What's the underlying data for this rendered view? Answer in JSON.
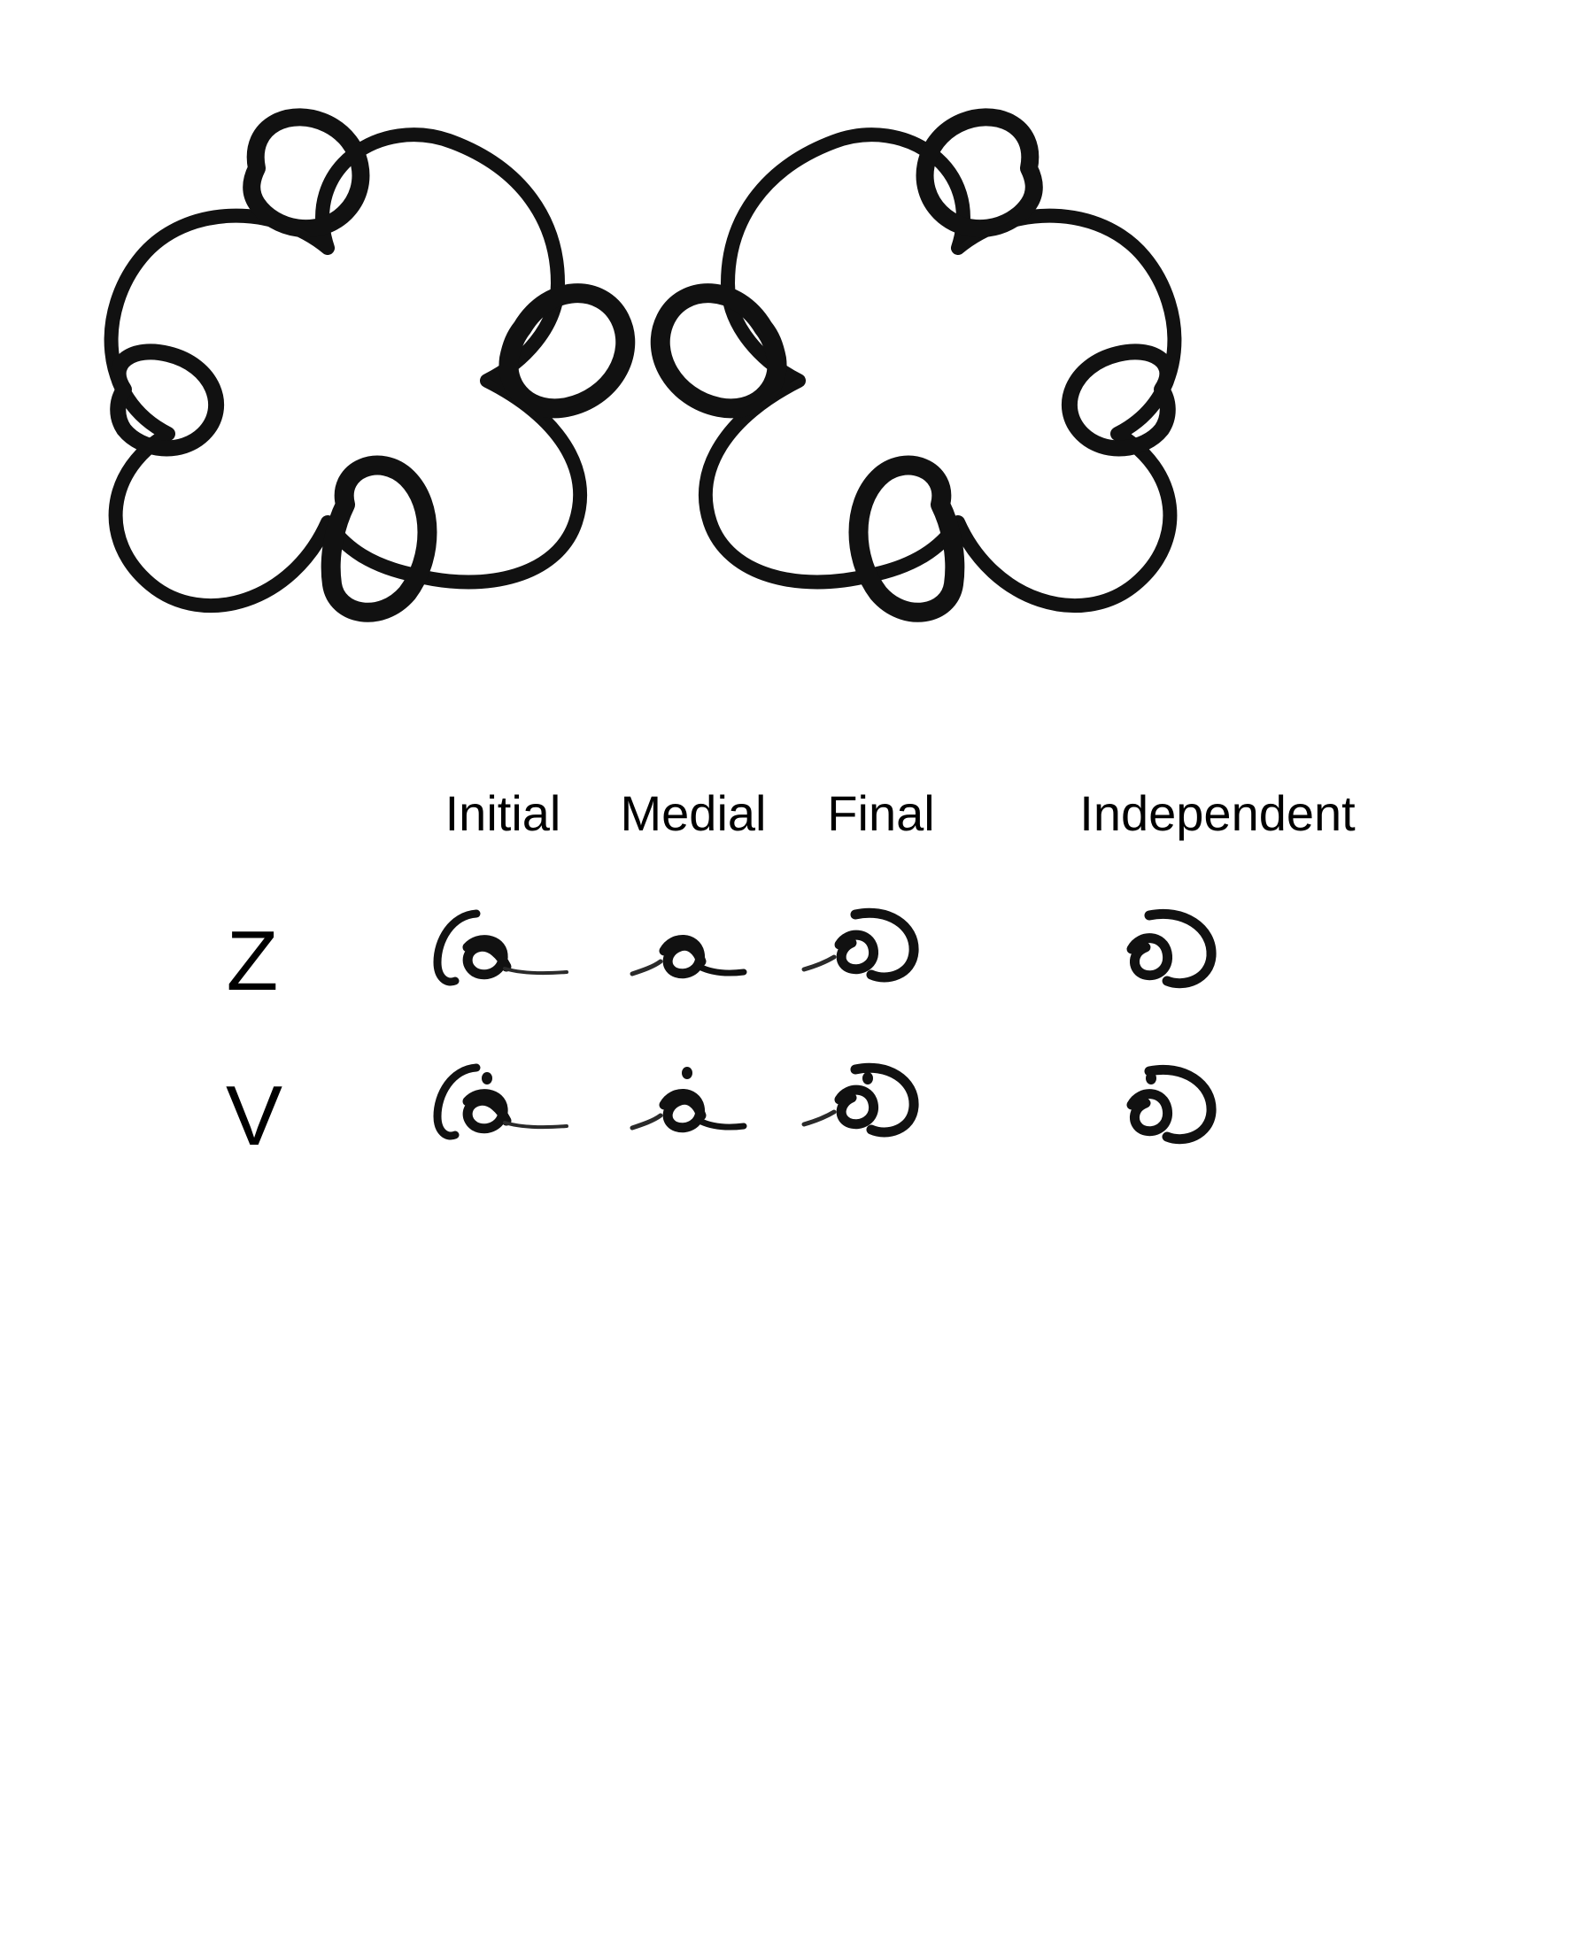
{
  "table": {
    "columns": [
      "Initial",
      "Medial",
      "Final",
      "Independent"
    ],
    "rows": [
      {
        "label": "Z",
        "dotted": false
      },
      {
        "label": "V",
        "dotted": true
      }
    ]
  },
  "ornaments": [
    {
      "name": "ornament-left",
      "mirrored": false
    },
    {
      "name": "ornament-right",
      "mirrored": true
    }
  ],
  "colors": {
    "ink": "#111111",
    "background": "#ffffff"
  }
}
